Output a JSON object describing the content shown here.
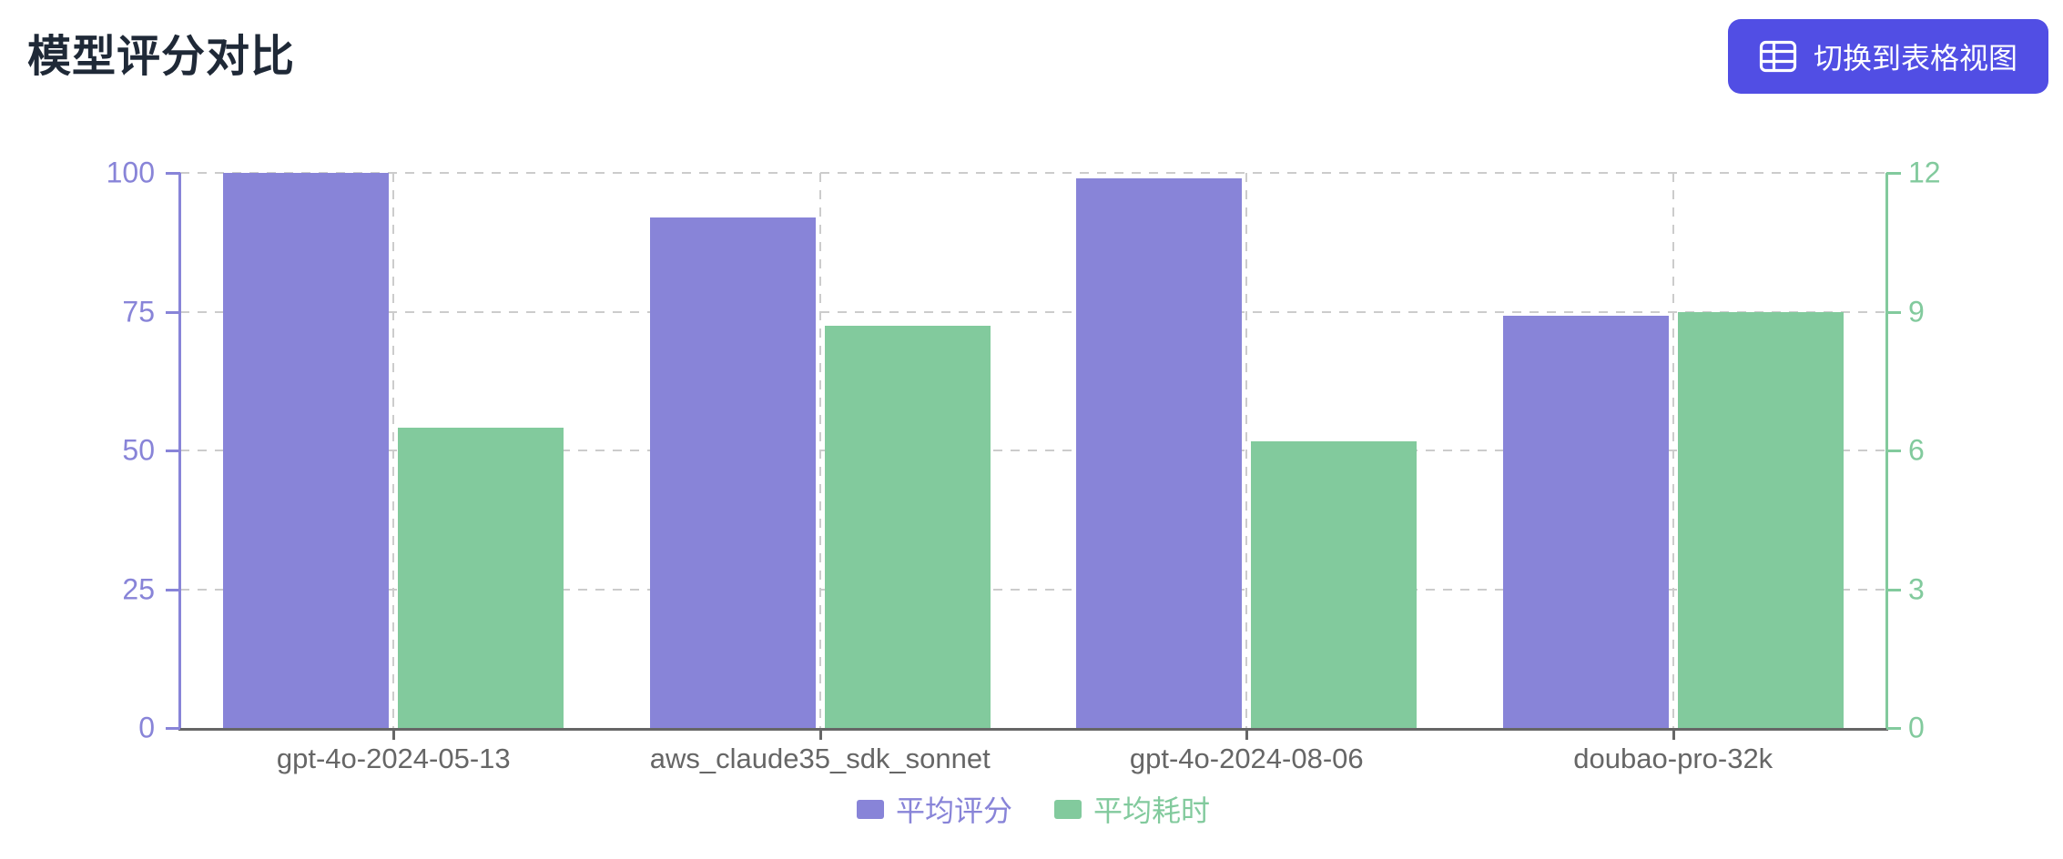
{
  "page": {
    "title": "模型评分对比",
    "title_color": "#1f2937",
    "background": "#ffffff"
  },
  "toolbar": {
    "switch_view_label": "切换到表格视图",
    "switch_view_icon": "table-icon",
    "button_color": "#514ee4",
    "button_text_color": "#ffffff"
  },
  "chart_data": {
    "type": "bar",
    "title": "模型评分对比",
    "categories": [
      "gpt-4o-2024-05-13",
      "aws_claude35_sdk_sonnet",
      "gpt-4o-2024-08-06",
      "doubao-pro-32k"
    ],
    "series": [
      {
        "name": "平均评分",
        "axis": "left",
        "color": "#8884d8",
        "values": [
          100,
          92,
          99,
          74.3
        ]
      },
      {
        "name": "平均耗时",
        "axis": "right",
        "color": "#82ca9d",
        "values": [
          6.5,
          8.7,
          6.2,
          9
        ]
      }
    ],
    "axes": {
      "left": {
        "ticks": [
          0,
          25,
          50,
          75,
          100
        ],
        "min": 0,
        "max": 100,
        "color": "#8884d8"
      },
      "right": {
        "ticks": [
          0,
          3,
          6,
          9,
          12
        ],
        "min": 0,
        "max": 12,
        "color": "#82ca9d"
      },
      "x": {
        "color": "#666666",
        "label_color": "#666666"
      }
    },
    "grid": {
      "show": true,
      "dashed": true,
      "color": "#cccccc"
    },
    "legend": {
      "position": "bottom",
      "entries": [
        "平均评分",
        "平均耗时"
      ]
    }
  }
}
